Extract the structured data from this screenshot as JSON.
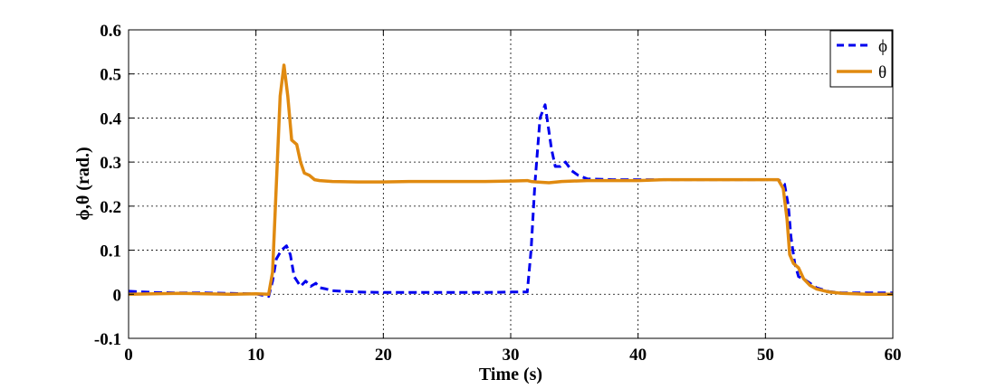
{
  "chart_data": {
    "type": "line",
    "title": "",
    "xlabel": "Time (s)",
    "ylabel": "ϕ,θ (rad.)",
    "xlim": [
      0,
      60
    ],
    "ylim": [
      -0.1,
      0.6
    ],
    "xticks": [
      "0",
      "10",
      "20",
      "30",
      "40",
      "50",
      "60"
    ],
    "yticks": [
      "-0.1",
      "0",
      "0.1",
      "0.2",
      "0.3",
      "0.4",
      "0.5",
      "0.6"
    ],
    "grid": true,
    "legend_position": "top-right",
    "series": [
      {
        "name": "ϕ",
        "color": "#0000ee",
        "style": "dashed",
        "x": [
          0,
          2,
          4,
          6,
          8,
          10,
          11.0,
          11.3,
          11.6,
          12.0,
          12.4,
          12.7,
          13.0,
          13.5,
          13.9,
          14.3,
          14.7,
          15.0,
          15.5,
          16,
          18,
          20,
          22,
          24,
          26,
          28,
          30,
          31.3,
          31.6,
          31.9,
          32.3,
          32.7,
          32.9,
          33.2,
          33.5,
          33.9,
          34.3,
          34.8,
          35.3,
          36,
          38,
          40,
          42,
          44,
          46,
          48,
          50,
          51.0,
          51.5,
          51.8,
          52.0,
          52.3,
          52.6,
          53.0,
          53.5,
          54,
          55,
          56,
          57,
          58,
          60
        ],
        "y": [
          0.007,
          0.004,
          0.003,
          0.003,
          0.002,
          0.001,
          -0.005,
          0.03,
          0.08,
          0.1,
          0.11,
          0.09,
          0.04,
          0.018,
          0.03,
          0.018,
          0.025,
          0.015,
          0.012,
          0.008,
          0.005,
          0.004,
          0.004,
          0.004,
          0.004,
          0.004,
          0.005,
          0.005,
          0.1,
          0.25,
          0.4,
          0.43,
          0.39,
          0.33,
          0.29,
          0.29,
          0.3,
          0.28,
          0.27,
          0.262,
          0.26,
          0.26,
          0.26,
          0.26,
          0.26,
          0.26,
          0.26,
          0.26,
          0.25,
          0.2,
          0.13,
          0.07,
          0.04,
          0.035,
          0.025,
          0.015,
          0.006,
          0.003,
          0.003,
          0.003,
          0.003
        ]
      },
      {
        "name": "θ",
        "color": "#e08a10",
        "style": "solid",
        "x": [
          0,
          2,
          4,
          6,
          8,
          10,
          11.0,
          11.3,
          11.6,
          11.9,
          12.2,
          12.5,
          12.8,
          13.2,
          13.5,
          13.8,
          14.2,
          14.6,
          15,
          16,
          18,
          20,
          22,
          24,
          26,
          28,
          30,
          31.3,
          31.6,
          32,
          33,
          34,
          36,
          38,
          40,
          42,
          44,
          46,
          48,
          50,
          51.0,
          51.4,
          51.7,
          51.9,
          52.2,
          52.6,
          53.0,
          53.5,
          54,
          55,
          56,
          57,
          58,
          60
        ],
        "y": [
          0.0,
          0.001,
          0.002,
          0.001,
          0.0,
          0.001,
          0.0,
          0.05,
          0.25,
          0.45,
          0.52,
          0.45,
          0.35,
          0.34,
          0.3,
          0.275,
          0.27,
          0.26,
          0.258,
          0.256,
          0.255,
          0.255,
          0.256,
          0.256,
          0.256,
          0.256,
          0.257,
          0.258,
          0.256,
          0.255,
          0.253,
          0.256,
          0.258,
          0.258,
          0.258,
          0.26,
          0.26,
          0.26,
          0.26,
          0.26,
          0.26,
          0.24,
          0.17,
          0.09,
          0.07,
          0.06,
          0.035,
          0.02,
          0.012,
          0.005,
          0.002,
          0.001,
          0.0,
          0.0
        ]
      }
    ]
  }
}
